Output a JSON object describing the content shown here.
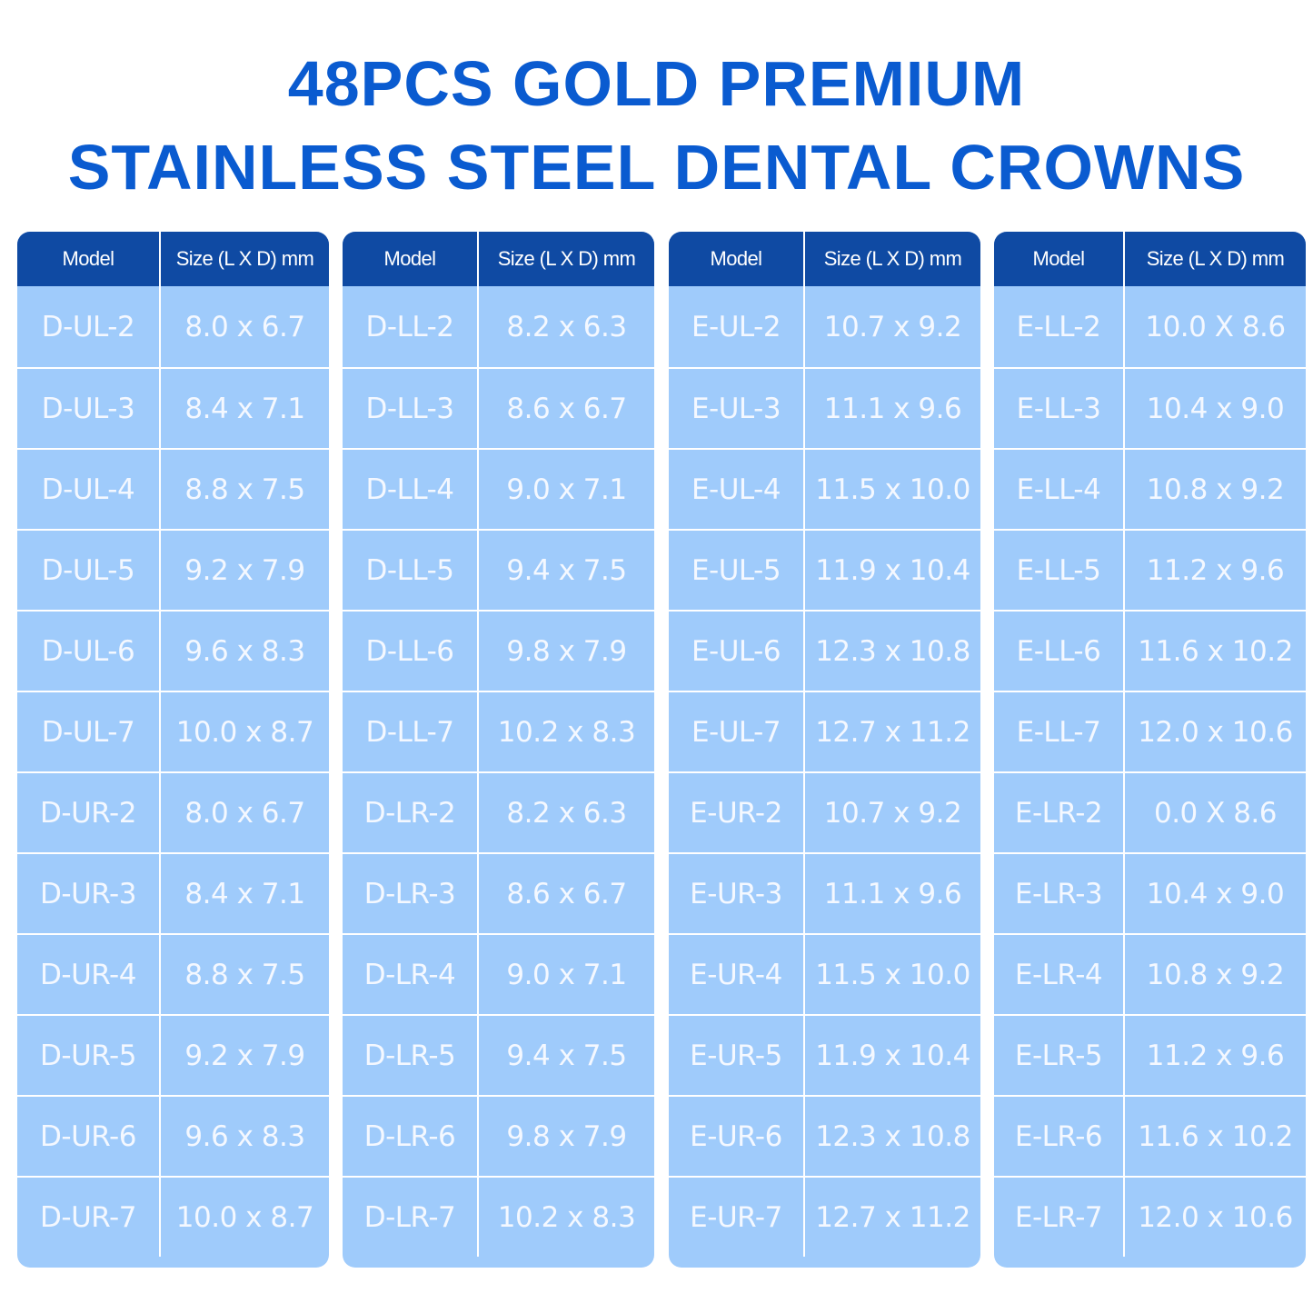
{
  "title": {
    "line1": "48PCS GOLD PREMIUM",
    "line2": "STAINLESS STEEL DENTAL CROWNS"
  },
  "tables": [
    {
      "header": {
        "model": "Model",
        "size": "Size (L X D) mm"
      },
      "rows": [
        {
          "model": "D-UL-2",
          "size": "8.0 x 6.7"
        },
        {
          "model": "D-UL-3",
          "size": "8.4 x 7.1"
        },
        {
          "model": "D-UL-4",
          "size": "8.8 x 7.5"
        },
        {
          "model": "D-UL-5",
          "size": "9.2 x 7.9"
        },
        {
          "model": "D-UL-6",
          "size": "9.6 x 8.3"
        },
        {
          "model": "D-UL-7",
          "size": "10.0 x 8.7"
        },
        {
          "model": "D-UR-2",
          "size": "8.0 x 6.7"
        },
        {
          "model": "D-UR-3",
          "size": "8.4 x 7.1"
        },
        {
          "model": "D-UR-4",
          "size": "8.8 x 7.5"
        },
        {
          "model": "D-UR-5",
          "size": "9.2 x 7.9"
        },
        {
          "model": "D-UR-6",
          "size": "9.6 x 8.3"
        },
        {
          "model": "D-UR-7",
          "size": "10.0 x 8.7"
        }
      ]
    },
    {
      "header": {
        "model": "Model",
        "size": "Size (L X D) mm"
      },
      "rows": [
        {
          "model": "D-LL-2",
          "size": "8.2 x 6.3"
        },
        {
          "model": "D-LL-3",
          "size": "8.6 x 6.7"
        },
        {
          "model": "D-LL-4",
          "size": "9.0 x 7.1"
        },
        {
          "model": "D-LL-5",
          "size": "9.4 x 7.5"
        },
        {
          "model": "D-LL-6",
          "size": "9.8 x 7.9"
        },
        {
          "model": "D-LL-7",
          "size": "10.2 x 8.3"
        },
        {
          "model": "D-LR-2",
          "size": "8.2 x 6.3"
        },
        {
          "model": "D-LR-3",
          "size": "8.6 x 6.7"
        },
        {
          "model": "D-LR-4",
          "size": "9.0 x 7.1"
        },
        {
          "model": "D-LR-5",
          "size": "9.4 x 7.5"
        },
        {
          "model": "D-LR-6",
          "size": "9.8 x 7.9"
        },
        {
          "model": "D-LR-7",
          "size": "10.2 x 8.3"
        }
      ]
    },
    {
      "header": {
        "model": "Model",
        "size": "Size (L X D) mm"
      },
      "rows": [
        {
          "model": "E-UL-2",
          "size": "10.7 x 9.2"
        },
        {
          "model": "E-UL-3",
          "size": "11.1 x 9.6"
        },
        {
          "model": "E-UL-4",
          "size": "11.5 x 10.0"
        },
        {
          "model": "E-UL-5",
          "size": "11.9 x 10.4"
        },
        {
          "model": "E-UL-6",
          "size": "12.3 x 10.8"
        },
        {
          "model": "E-UL-7",
          "size": "12.7 x 11.2"
        },
        {
          "model": "E-UR-2",
          "size": "10.7 x 9.2"
        },
        {
          "model": "E-UR-3",
          "size": "11.1 x 9.6"
        },
        {
          "model": "E-UR-4",
          "size": "11.5 x 10.0"
        },
        {
          "model": "E-UR-5",
          "size": "11.9 x 10.4"
        },
        {
          "model": "E-UR-6",
          "size": "12.3 x 10.8"
        },
        {
          "model": "E-UR-7",
          "size": "12.7 x 11.2"
        }
      ]
    },
    {
      "header": {
        "model": "Model",
        "size": "Size (L X D) mm"
      },
      "rows": [
        {
          "model": "E-LL-2",
          "size": "10.0 X 8.6"
        },
        {
          "model": "E-LL-3",
          "size": "10.4 x 9.0"
        },
        {
          "model": "E-LL-4",
          "size": "10.8 x 9.2"
        },
        {
          "model": "E-LL-5",
          "size": "11.2 x 9.6"
        },
        {
          "model": "E-LL-6",
          "size": "11.6 x 10.2"
        },
        {
          "model": "E-LL-7",
          "size": "12.0 x 10.6"
        },
        {
          "model": "E-LR-2",
          "size": "0.0 X 8.6"
        },
        {
          "model": "E-LR-3",
          "size": "10.4 x 9.0"
        },
        {
          "model": "E-LR-4",
          "size": "10.8 x 9.2"
        },
        {
          "model": "E-LR-5",
          "size": "11.2 x 9.6"
        },
        {
          "model": "E-LR-6",
          "size": "11.6 x 10.2"
        },
        {
          "model": "E-LR-7",
          "size": "12.0 x 10.6"
        }
      ]
    }
  ],
  "colors": {
    "title": "#0a5bd0",
    "header_bg": "#0f4aa3",
    "cell_bg": "#9fcbfb",
    "cell_text": "#f4f8ff"
  }
}
